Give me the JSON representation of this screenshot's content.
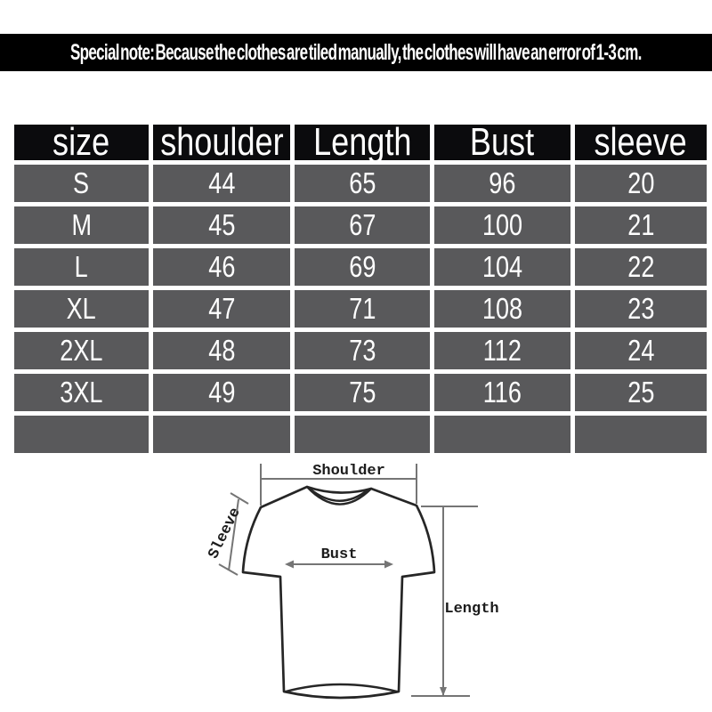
{
  "banner": {
    "text": "Special note: Because the clothes are tiled manually, the clothes will have an error of 1-3 cm.",
    "bg": "#000000",
    "fg": "#ffffff"
  },
  "size_table": {
    "columns": [
      "size",
      "shoulder",
      "Length",
      "Bust",
      "sleeve"
    ],
    "rows": [
      [
        "S",
        "44",
        "65",
        "96",
        "20"
      ],
      [
        "M",
        "45",
        "67",
        "100",
        "21"
      ],
      [
        "L",
        "46",
        "69",
        "104",
        "22"
      ],
      [
        "XL",
        "47",
        "71",
        "108",
        "23"
      ],
      [
        "2XL",
        "48",
        "73",
        "112",
        "24"
      ],
      [
        "3XL",
        "49",
        "75",
        "116",
        "25"
      ],
      [
        "",
        "",
        "",
        "",
        ""
      ]
    ],
    "colors": {
      "header_bg": "#0b0b0d",
      "row_bg": "#59595b",
      "text": "#ffffff",
      "gap": "#ffffff"
    }
  },
  "diagram": {
    "labels": {
      "shoulder": "Shoulder",
      "sleeve": "Sleeve",
      "bust": "Bust",
      "length": "Length"
    },
    "colors": {
      "outline": "#262626",
      "measure": "#757575",
      "label": "#1c1c1c"
    }
  },
  "chart_data": {
    "type": "table",
    "title": "Special note: Because the clothes are tiled manually, the clothes will have an error of 1-3 cm.",
    "columns": [
      "size",
      "shoulder",
      "Length",
      "Bust",
      "sleeve"
    ],
    "rows": [
      [
        "S",
        44,
        65,
        96,
        20
      ],
      [
        "M",
        45,
        67,
        100,
        21
      ],
      [
        "L",
        46,
        69,
        104,
        22
      ],
      [
        "XL",
        47,
        71,
        108,
        23
      ],
      [
        "2XL",
        48,
        73,
        112,
        24
      ],
      [
        "3XL",
        49,
        75,
        116,
        25
      ]
    ],
    "annotations": [
      "Shoulder",
      "Sleeve",
      "Bust",
      "Length"
    ]
  }
}
